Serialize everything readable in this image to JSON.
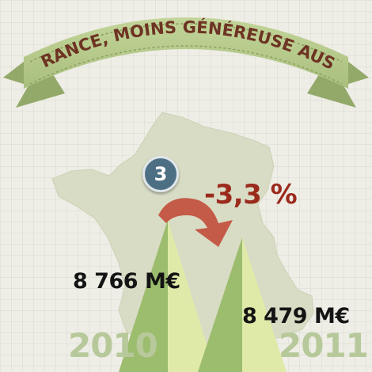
{
  "banner": {
    "title": "LA FRANCE, MOINS GÉNÉREUSE AUSSI..."
  },
  "badge": {
    "number": "3"
  },
  "change": {
    "percent": "-3,3 %"
  },
  "years": [
    {
      "label": "2010",
      "amount": "8 766 M€"
    },
    {
      "label": "2011",
      "amount": "8 479 M€"
    }
  ],
  "colors": {
    "ribbon": "#b5c98a",
    "ribbon_text": "#6e3323",
    "map": "#d8dcc4",
    "triangle_dark": "#9cbc6e",
    "triangle_light": "#dfeaa8",
    "arrow": "#c45a48",
    "percent": "#9b2a1d",
    "badge": "#4d6f84"
  }
}
